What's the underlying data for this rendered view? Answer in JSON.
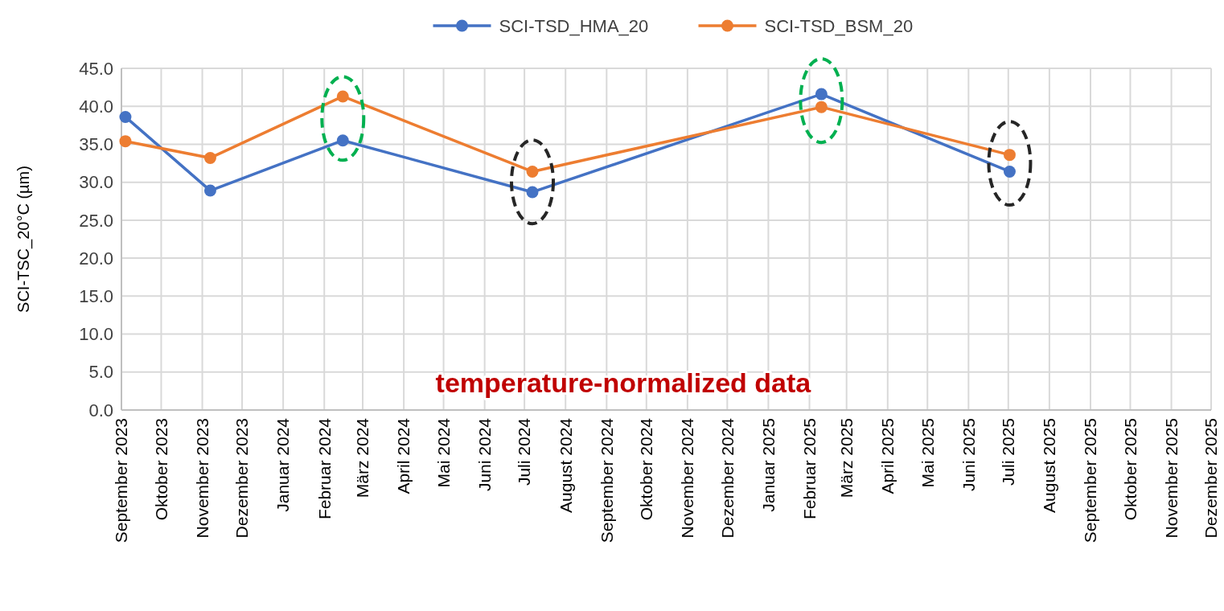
{
  "chart_data": {
    "type": "line",
    "ylabel": "SCI-TSC_20°C (µm)",
    "x": [
      "2023-09-04",
      "2023-11-07",
      "2024-02-15",
      "2024-07-07",
      "2025-02-10",
      "2025-07-02"
    ],
    "series": [
      {
        "name": "SCI-TSD_HMA_20",
        "color": "#4472c4",
        "values": [
          38.6,
          28.9,
          35.5,
          28.7,
          41.6,
          31.4
        ]
      },
      {
        "name": "SCI-TSD_BSM_20",
        "color": "#ed7d31",
        "values": [
          35.4,
          33.2,
          41.3,
          31.4,
          39.9,
          33.6
        ]
      }
    ],
    "xlim": [
      "2023-09-01",
      "2025-12-01"
    ],
    "xticks": [
      {
        "value": "2023-09-01",
        "label": "September 2023"
      },
      {
        "value": "2023-10-01",
        "label": "Oktober 2023"
      },
      {
        "value": "2023-11-01",
        "label": "November 2023"
      },
      {
        "value": "2023-12-01",
        "label": "Dezember 2023"
      },
      {
        "value": "2024-01-01",
        "label": "Januar 2024"
      },
      {
        "value": "2024-02-01",
        "label": "Februar 2024"
      },
      {
        "value": "2024-03-01",
        "label": "März 2024"
      },
      {
        "value": "2024-04-01",
        "label": "April 2024"
      },
      {
        "value": "2024-05-01",
        "label": "Mai 2024"
      },
      {
        "value": "2024-06-01",
        "label": "Juni 2024"
      },
      {
        "value": "2024-07-01",
        "label": "Juli 2024"
      },
      {
        "value": "2024-08-01",
        "label": "August 2024"
      },
      {
        "value": "2024-09-01",
        "label": "September 2024"
      },
      {
        "value": "2024-10-01",
        "label": "Oktober 2024"
      },
      {
        "value": "2024-11-01",
        "label": "November 2024"
      },
      {
        "value": "2024-12-01",
        "label": "Dezember 2024"
      },
      {
        "value": "2025-01-01",
        "label": "Januar 2025"
      },
      {
        "value": "2025-02-01",
        "label": "Februar 2025"
      },
      {
        "value": "2025-03-01",
        "label": "März 2025"
      },
      {
        "value": "2025-04-01",
        "label": "April 2025"
      },
      {
        "value": "2025-05-01",
        "label": "Mai 2025"
      },
      {
        "value": "2025-06-01",
        "label": "Juni 2025"
      },
      {
        "value": "2025-07-01",
        "label": "Juli 2025"
      },
      {
        "value": "2025-08-01",
        "label": "August 2025"
      },
      {
        "value": "2025-09-01",
        "label": "September 2025"
      },
      {
        "value": "2025-10-01",
        "label": "Oktober 2025"
      },
      {
        "value": "2025-11-01",
        "label": "November 2025"
      },
      {
        "value": "2025-12-01",
        "label": "Dezember 2025"
      }
    ],
    "ylim": [
      0,
      45
    ],
    "yticks": [
      {
        "value": 0,
        "label": "0.0"
      },
      {
        "value": 5,
        "label": "5.0"
      },
      {
        "value": 10,
        "label": "10.0"
      },
      {
        "value": 15,
        "label": "15.0"
      },
      {
        "value": 20,
        "label": "20.0"
      },
      {
        "value": 25,
        "label": "25.0"
      },
      {
        "value": 30,
        "label": "30.0"
      },
      {
        "value": 35,
        "label": "35.0"
      },
      {
        "value": 40,
        "label": "40.0"
      },
      {
        "value": 45,
        "label": "45.0"
      }
    ],
    "grid": true,
    "legend": "top",
    "marker": "circle",
    "line_style": "solid",
    "annotations": [
      "temperature-normalized data"
    ]
  }
}
